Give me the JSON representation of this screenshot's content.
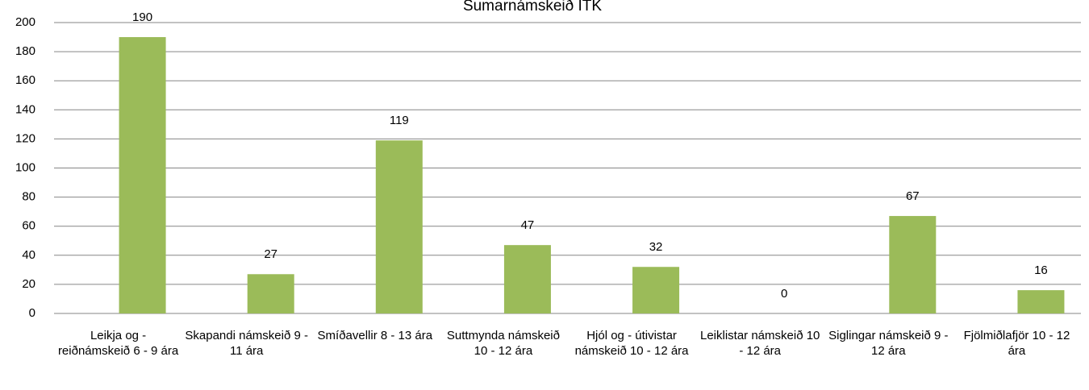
{
  "chart_data": {
    "type": "bar",
    "title": "Sumarnámskeið ITK",
    "categories": [
      "Leikja og - reiðnámskeið 6 - 9 ára",
      "Skapandi námskeið 9 - 11 ára",
      "Smíðavellir 8 - 13 ára",
      "Suttmynda námskeið 10 - 12 ára",
      "Hjól og - útivistar námskeið 10 - 12 ára",
      "Leiklistar námskeið 10 - 12 ára",
      "Siglingar námskeið 9 - 12 ára",
      "Fjölmiðlafjör 10 - 12 ára"
    ],
    "values": [
      190,
      27,
      119,
      47,
      32,
      0,
      67,
      16
    ],
    "color": "#9bbb59",
    "ylim": [
      0,
      200
    ],
    "yticks": [
      0,
      20,
      40,
      60,
      80,
      100,
      120,
      140,
      160,
      180,
      200
    ],
    "grid": true
  }
}
